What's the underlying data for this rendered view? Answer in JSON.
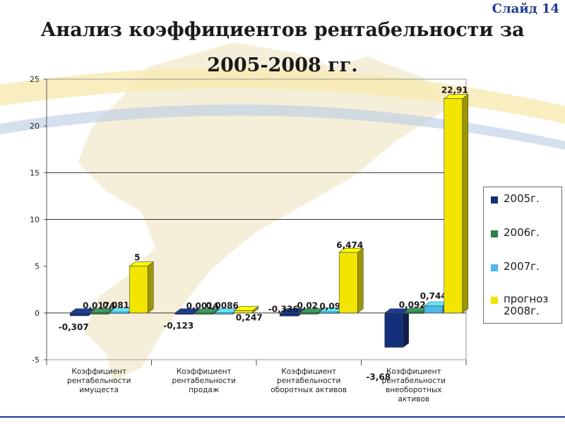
{
  "slide": {
    "label": "Слайд 14"
  },
  "title_lines": [
    "Анализ коэффициентов рентабельности за",
    "2005-2008 гг."
  ],
  "colors": {
    "s2005": "#15307a",
    "s2006": "#2e7d4a",
    "s2007": "#4db8ea",
    "s2008": "#f2e600",
    "map_fill": "#f3ecd2",
    "band_yellow": "#f6e7a0",
    "band_blue": "#9cb6d8"
  },
  "chart_data": {
    "type": "bar",
    "categories": [
      [
        "Коэффициент",
        "рентабельности",
        "имущеста"
      ],
      [
        "Коэффициент",
        "рентабельности",
        "продаж"
      ],
      [
        "Коэффициент",
        "рентабельности",
        "оборотных активов"
      ],
      [
        "Коэффициент",
        "рентабельности",
        "внеоборотных",
        "активов"
      ]
    ],
    "series": [
      {
        "name": "2005г.",
        "values": [
          -0.307,
          -0.123,
          -0.336,
          -3.68
        ],
        "labels": [
          "-0,307",
          "-0,123",
          "-0,336",
          "-3,68"
        ]
      },
      {
        "name": "2006г.",
        "values": [
          0.0174,
          0.0014,
          0.02,
          0.092
        ],
        "labels": [
          "0,0174",
          "0,0014",
          "0,02",
          "0,092"
        ]
      },
      {
        "name": "2007г.",
        "values": [
          0.0815,
          0.0086,
          0.09,
          0.744
        ],
        "labels": [
          "0,0815",
          "0,0086",
          "0,09",
          "0,744"
        ]
      },
      {
        "name": "прогноз\n2008г.",
        "values": [
          5,
          0.247,
          6.474,
          22.91
        ],
        "labels": [
          "5",
          "0,247",
          "6,474",
          "22,91"
        ]
      }
    ],
    "y_ticks": [
      -5,
      0,
      5,
      10,
      15,
      20,
      25
    ],
    "ylim": [
      -5,
      25
    ],
    "gridlines": [
      10,
      15
    ],
    "legend": "right"
  }
}
